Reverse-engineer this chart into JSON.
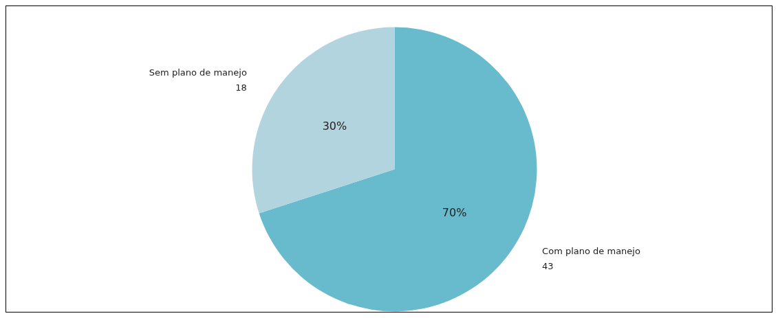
{
  "chart_data": {
    "type": "pie",
    "categories": [
      "Com plano de manejo",
      "Sem plano de manejo"
    ],
    "values": [
      70,
      30
    ],
    "colors": [
      "#68bacd",
      "#b2d4df"
    ],
    "value_labels": [
      "70%",
      "30%"
    ],
    "annotations": [
      {
        "text": "43",
        "x": "Com plano de manejo"
      },
      {
        "text": "18",
        "x": "Sem plano de manejo"
      }
    ],
    "legend": false
  }
}
